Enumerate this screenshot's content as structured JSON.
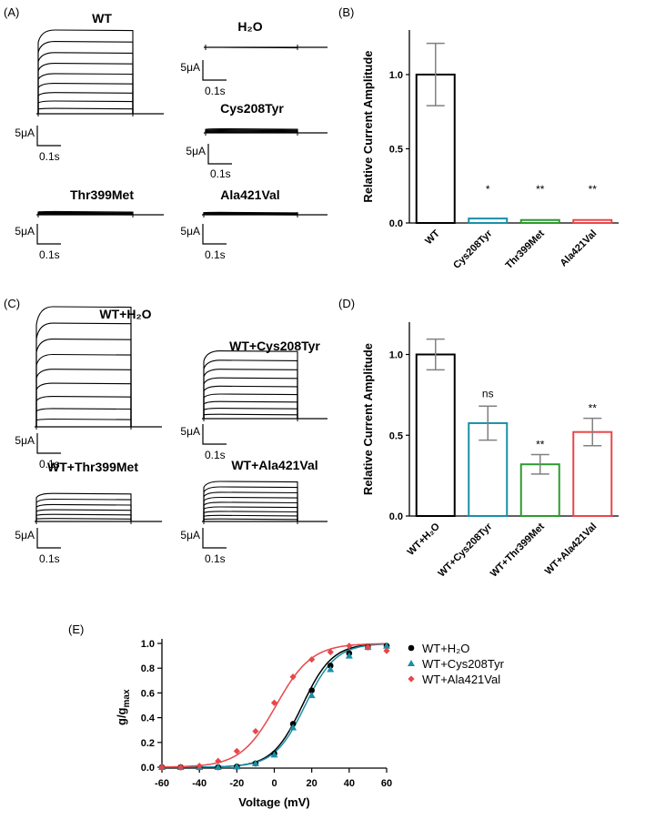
{
  "panels": {
    "a": {
      "label": "(A)"
    },
    "b": {
      "label": "(B)"
    },
    "c": {
      "label": "(C)"
    },
    "d": {
      "label": "(D)"
    },
    "e": {
      "label": "(E)"
    }
  },
  "traces": {
    "scale_current": "5μA",
    "scale_time": "0.1s",
    "a": [
      {
        "name": "WT",
        "n": 9,
        "max_rel": 1.0
      },
      {
        "name": "H₂O",
        "n": 1,
        "max_rel": 0.0
      },
      {
        "name": "Cys208Tyr",
        "n": 5,
        "max_rel": 0.05
      },
      {
        "name": "Thr399Met",
        "n": 5,
        "max_rel": 0.04
      },
      {
        "name": "Ala421Val",
        "n": 5,
        "max_rel": 0.03
      }
    ],
    "c": [
      {
        "name": "WT+H₂O",
        "n": 9,
        "max_rel": 1.0
      },
      {
        "name": "WT+Cys208Tyr",
        "n": 9,
        "max_rel": 0.62
      },
      {
        "name": "WT+Thr399Met",
        "n": 6,
        "max_rel": 0.28
      },
      {
        "name": "WT+Ala421Val",
        "n": 9,
        "max_rel": 0.55
      }
    ]
  },
  "colors": {
    "black": "#000000",
    "teal": "#1a8fa6",
    "green": "#2e9a2e",
    "red": "#e8474a",
    "grey": "#808080"
  },
  "chart_data": [
    {
      "id": "B",
      "type": "bar",
      "ylabel": "Relative Current Amplitude",
      "ylim": [
        0,
        1.3
      ],
      "yticks": [
        "0.0",
        "0.5",
        "1.0"
      ],
      "categories": [
        "WT",
        "Cys208Tyr",
        "Thr399Met",
        "Ala421Val"
      ],
      "values": [
        1.0,
        0.03,
        0.02,
        0.02
      ],
      "errors": [
        0.21,
        0.0,
        0.0,
        0.0
      ],
      "significance": [
        "",
        "*",
        "**",
        "**"
      ],
      "bar_colors": [
        "#000000",
        "#1a8fa6",
        "#2e9a2e",
        "#e8474a"
      ]
    },
    {
      "id": "D",
      "type": "bar",
      "ylabel": "Relative Current Amplitude",
      "ylim": [
        0,
        1.2
      ],
      "yticks": [
        "0.0",
        "0.5",
        "1.0"
      ],
      "categories": [
        "WT+H₂O",
        "WT+Cys208Tyr",
        "WT+Thr399Met",
        "WT+Ala421Val"
      ],
      "values": [
        1.0,
        0.575,
        0.32,
        0.52
      ],
      "errors": [
        0.095,
        0.105,
        0.06,
        0.085
      ],
      "significance": [
        "",
        "ns",
        "**",
        "**"
      ],
      "bar_colors": [
        "#000000",
        "#1a8fa6",
        "#2e9a2e",
        "#e8474a"
      ]
    },
    {
      "id": "E",
      "type": "scatter",
      "xlabel": "Voltage (mV)",
      "ylabel": "g/g",
      "ylabel_sub": "max",
      "xlim": [
        -60,
        60
      ],
      "ylim": [
        0,
        1.0
      ],
      "xticks": [
        "-60",
        "-40",
        "-20",
        "0",
        "20",
        "40",
        "60"
      ],
      "yticks": [
        "0.0",
        "0.2",
        "0.4",
        "0.6",
        "0.8",
        "1.0"
      ],
      "series": [
        {
          "name": "WT+H₂O",
          "color": "#000000",
          "marker": "circle",
          "x": [
            -60,
            -50,
            -40,
            -30,
            -20,
            -10,
            0,
            10,
            20,
            30,
            40,
            50,
            60
          ],
          "y": [
            0.0,
            0.0,
            0.0,
            0.0,
            0.005,
            0.03,
            0.11,
            0.35,
            0.62,
            0.82,
            0.92,
            0.97,
            0.98
          ],
          "fit": {
            "v_half": 15,
            "k": 8.0
          }
        },
        {
          "name": "WT+Cys208Tyr",
          "color": "#1a8fa6",
          "marker": "triangle",
          "x": [
            -60,
            -50,
            -40,
            -30,
            -20,
            -10,
            0,
            10,
            20,
            30,
            40,
            50,
            60
          ],
          "y": [
            0.0,
            0.0,
            0.0,
            0.0,
            0.005,
            0.03,
            0.1,
            0.32,
            0.58,
            0.79,
            0.9,
            0.97,
            0.98
          ],
          "fit": {
            "v_half": 16.5,
            "k": 8.2
          }
        },
        {
          "name": "WT+Ala421Val",
          "color": "#e8474a",
          "marker": "diamond",
          "x": [
            -60,
            -50,
            -40,
            -30,
            -20,
            -10,
            0,
            10,
            20,
            30,
            40,
            50,
            60
          ],
          "y": [
            0.0,
            0.0,
            0.01,
            0.05,
            0.13,
            0.29,
            0.52,
            0.73,
            0.87,
            0.93,
            0.98,
            0.97,
            0.94
          ],
          "fit": {
            "v_half": 1,
            "k": 9.5
          }
        }
      ]
    }
  ]
}
